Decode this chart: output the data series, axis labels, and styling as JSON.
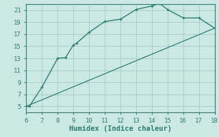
{
  "xlabel": "Humidex (Indice chaleur)",
  "line1_x": [
    6,
    6.2,
    7,
    8,
    8.5,
    9,
    9.2,
    10,
    11,
    12,
    13,
    14,
    14.5,
    15,
    16,
    17,
    18
  ],
  "line1_y": [
    5,
    5,
    8.2,
    13,
    13.1,
    15.2,
    15.5,
    17.3,
    19.1,
    19.5,
    21.1,
    21.7,
    22.1,
    21.1,
    19.7,
    19.7,
    18
  ],
  "line2_x": [
    6,
    18
  ],
  "line2_y": [
    5,
    18
  ],
  "line_color": "#2d7d6e",
  "bg_color": "#cce8e4",
  "grid_color": "#a8d0ca",
  "xlim": [
    6,
    18
  ],
  "ylim": [
    4,
    22
  ],
  "xticks": [
    6,
    7,
    8,
    9,
    10,
    11,
    12,
    13,
    14,
    15,
    16,
    17,
    18
  ],
  "yticks": [
    5,
    7,
    9,
    11,
    13,
    15,
    17,
    19,
    21
  ],
  "tick_fontsize": 6.5,
  "xlabel_fontsize": 7.5
}
